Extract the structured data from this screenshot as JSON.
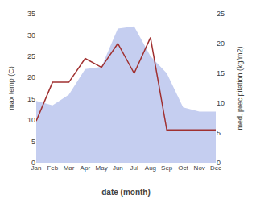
{
  "chart_data": {
    "type": "line",
    "categories": [
      "Jan",
      "Feb",
      "Mar",
      "Apr",
      "May",
      "Jun",
      "Jul",
      "Aug",
      "Sep",
      "Oct",
      "Nov",
      "Dec"
    ],
    "series": [
      {
        "type": "area",
        "color": "#c5cef0",
        "values": [
          14.5,
          13.5,
          16.0,
          22.0,
          22.5,
          31.5,
          32.0,
          25.0,
          21.0,
          13.0,
          12.0,
          12.0
        ]
      },
      {
        "type": "line",
        "color": "#a03030",
        "axis": "y2",
        "values": [
          7.0,
          13.5,
          13.5,
          17.5,
          16.0,
          20.0,
          15.0,
          21.0,
          5.5,
          5.5,
          5.5,
          5.5
        ]
      }
    ],
    "xlabel": "date (month)",
    "ylabel": "max temp (C)",
    "y2label": "med. precipitation (kg/m2)",
    "ylim": [
      0,
      35
    ],
    "yticks": [
      0,
      5,
      10,
      15,
      20,
      25,
      30,
      35
    ],
    "y2lim": [
      0,
      25
    ],
    "y2ticks": [
      0,
      5,
      10,
      15,
      20,
      25
    ],
    "grid": false
  }
}
